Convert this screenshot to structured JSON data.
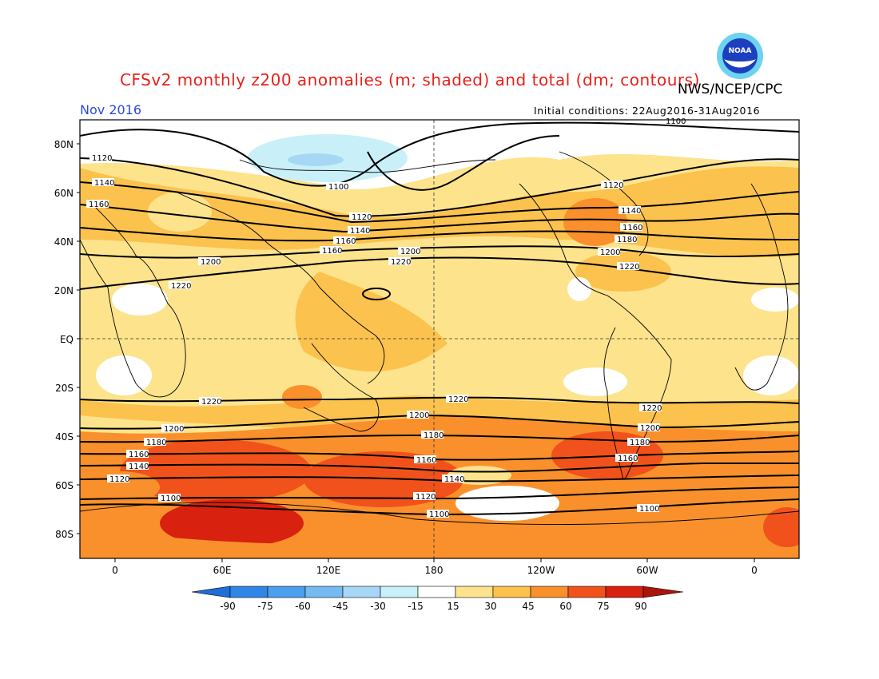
{
  "header": {
    "title": "CFSv2 monthly z200 anomalies (m; shaded) and total (dm; contours)",
    "month": "Nov 2016",
    "source": "NWS/NCEP/CPC",
    "initial_conditions": "Initial conditions: 22Aug2016-31Aug2016",
    "logo_text": "NOAA"
  },
  "axes": {
    "lat_labels": [
      "80N",
      "60N",
      "40N",
      "20N",
      "EQ",
      "20S",
      "40S",
      "60S",
      "80S"
    ],
    "lon_labels": [
      "0",
      "60E",
      "120E",
      "180",
      "120W",
      "60W",
      "0"
    ]
  },
  "contours": {
    "nh": [
      "1100",
      "1120",
      "1140",
      "1160",
      "1180",
      "1200",
      "1220"
    ],
    "sh": [
      "1220",
      "1200",
      "1180",
      "1160",
      "1140",
      "1120",
      "1100"
    ]
  },
  "colorbar": {
    "ticks": [
      "-90",
      "-75",
      "-60",
      "-45",
      "-30",
      "-15",
      "15",
      "30",
      "45",
      "60",
      "75",
      "90"
    ],
    "colors": [
      "#1e6fd9",
      "#2f86e6",
      "#4aa0ee",
      "#76baf3",
      "#a6d8f6",
      "#c9f0f8",
      "#ffffff",
      "#fde38c",
      "#fcc24e",
      "#f9902c",
      "#f1521b",
      "#d8210f",
      "#a9160c"
    ]
  }
}
